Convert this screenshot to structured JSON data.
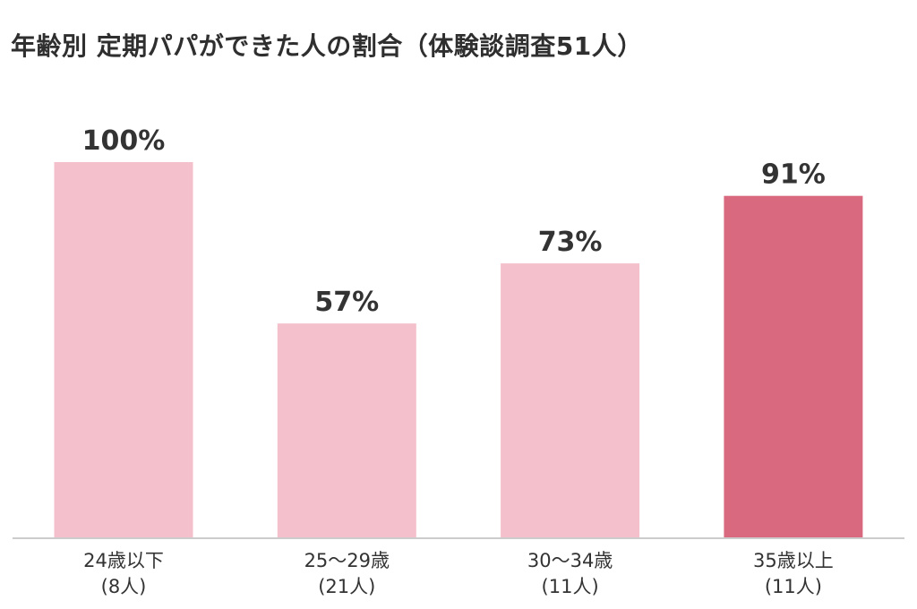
{
  "chart_data": {
    "type": "bar",
    "title": "年齢別 定期パパができた人の割合（体験談調査51人）",
    "xlabel": "",
    "ylabel": "",
    "ylim": [
      0,
      100
    ],
    "grid": false,
    "legend": "none",
    "categories": [
      {
        "name": "24歳以下",
        "count": "(8人)"
      },
      {
        "name": "25〜29歳",
        "count": "(21人)"
      },
      {
        "name": "30〜34歳",
        "count": "(11人)"
      },
      {
        "name": "35歳以上",
        "count": "(11人)"
      }
    ],
    "values": [
      100,
      57,
      73,
      91
    ],
    "value_labels": [
      "100%",
      "57%",
      "73%",
      "91%"
    ],
    "highlight_index": 3,
    "colors": {
      "bar": "#f4c0cb",
      "highlight": "#d9697f",
      "axis": "#cccccc",
      "text": "#333333"
    }
  }
}
